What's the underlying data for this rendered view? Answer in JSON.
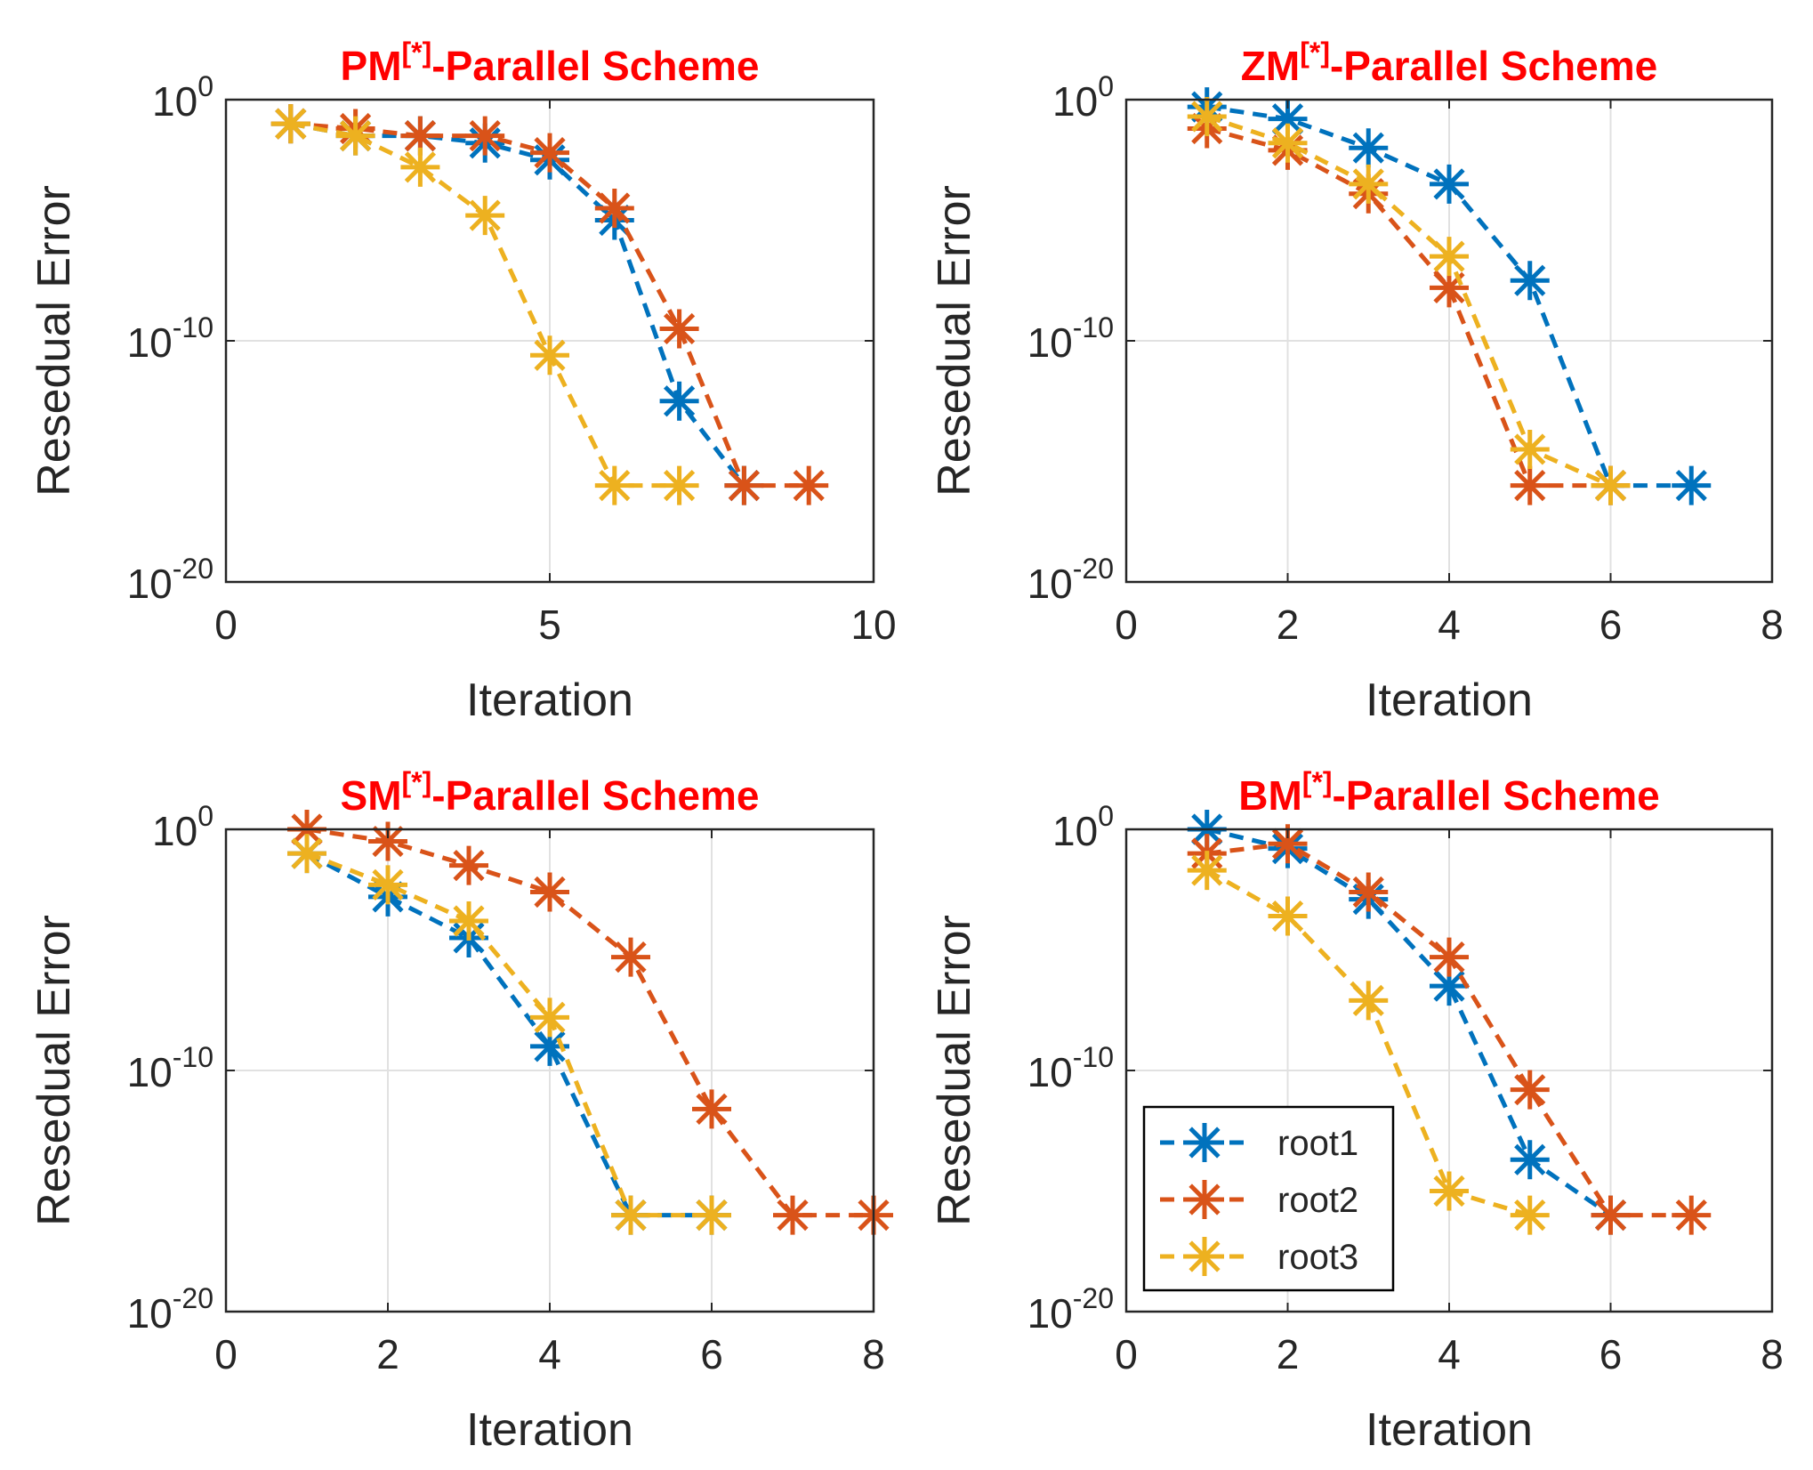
{
  "colors": {
    "root1": "#0072BD",
    "root2": "#D95319",
    "root3": "#EDB120",
    "title": "#ff0000",
    "grid": "#e1e1e1",
    "axis": "#262626"
  },
  "legend": {
    "placement": "bottom-left",
    "entries": [
      "root1",
      "root2",
      "root3"
    ]
  },
  "chart_data": [
    {
      "type": "line",
      "title": {
        "prefix": "PM",
        "sup": "[*]",
        "suffix": "-Parallel Scheme"
      },
      "xlabel": "Iteration",
      "ylabel": "Resedual Error",
      "xlim": [
        0,
        10
      ],
      "xticks": [
        0,
        5,
        10
      ],
      "ylim": [
        -20,
        0
      ],
      "yscale": "log",
      "yticks": [
        {
          "base": "10",
          "exp": "0",
          "value": 0
        },
        {
          "base": "10",
          "exp": "-10",
          "value": -10
        },
        {
          "base": "10",
          "exp": "-20",
          "value": -20
        }
      ],
      "grid": true,
      "series": [
        {
          "name": "root1",
          "x": [
            1,
            2,
            3,
            4,
            5,
            6,
            7,
            8
          ],
          "log10_y": [
            -1,
            -1.5,
            -1.5,
            -1.8,
            -2.5,
            -5.0,
            -12.5,
            -16
          ]
        },
        {
          "name": "root2",
          "x": [
            1,
            2,
            3,
            4,
            5,
            6,
            7,
            8,
            9
          ],
          "log10_y": [
            -1,
            -1.2,
            -1.5,
            -1.5,
            -2.2,
            -4.5,
            -9.5,
            -16,
            -16
          ]
        },
        {
          "name": "root3",
          "x": [
            1,
            2,
            3,
            4,
            5,
            6,
            7
          ],
          "log10_y": [
            -1,
            -1.5,
            -2.8,
            -4.8,
            -10.6,
            -16,
            -16
          ]
        }
      ]
    },
    {
      "type": "line",
      "title": {
        "prefix": "ZM",
        "sup": "[*]",
        "suffix": "-Parallel Scheme"
      },
      "xlabel": "Iteration",
      "ylabel": "Resedual Error",
      "xlim": [
        0,
        8
      ],
      "xticks": [
        0,
        2,
        4,
        6,
        8
      ],
      "ylim": [
        -20,
        0
      ],
      "yscale": "log",
      "yticks": [
        {
          "base": "10",
          "exp": "0",
          "value": 0
        },
        {
          "base": "10",
          "exp": "-10",
          "value": -10
        },
        {
          "base": "10",
          "exp": "-20",
          "value": -20
        }
      ],
      "grid": true,
      "series": [
        {
          "name": "root1",
          "x": [
            1,
            2,
            3,
            4,
            5,
            6,
            7
          ],
          "log10_y": [
            -0.3,
            -0.8,
            -2.0,
            -3.5,
            -7.5,
            -16,
            -16
          ]
        },
        {
          "name": "root2",
          "x": [
            1,
            2,
            3,
            4,
            5,
            6
          ],
          "log10_y": [
            -1.2,
            -2.1,
            -3.9,
            -7.8,
            -16,
            -16
          ]
        },
        {
          "name": "root3",
          "x": [
            1,
            2,
            3,
            4,
            5,
            6
          ],
          "log10_y": [
            -0.7,
            -1.8,
            -3.5,
            -6.5,
            -14.5,
            -16
          ]
        }
      ]
    },
    {
      "type": "line",
      "title": {
        "prefix": "SM",
        "sup": "[*]",
        "suffix": "-Parallel Scheme"
      },
      "xlabel": "Iteration",
      "ylabel": "Resedual Error",
      "xlim": [
        0,
        8
      ],
      "xticks": [
        0,
        2,
        4,
        6,
        8
      ],
      "ylim": [
        -20,
        0
      ],
      "yscale": "log",
      "yticks": [
        {
          "base": "10",
          "exp": "0",
          "value": 0
        },
        {
          "base": "10",
          "exp": "-10",
          "value": -10
        },
        {
          "base": "10",
          "exp": "-20",
          "value": -20
        }
      ],
      "grid": true,
      "series": [
        {
          "name": "root1",
          "x": [
            1,
            2,
            3,
            4,
            5,
            6
          ],
          "log10_y": [
            -1,
            -2.8,
            -4.5,
            -9.0,
            -16,
            -16
          ]
        },
        {
          "name": "root2",
          "x": [
            1,
            2,
            3,
            4,
            5,
            6,
            7,
            8
          ],
          "log10_y": [
            0,
            -0.5,
            -1.5,
            -2.6,
            -5.3,
            -11.6,
            -16,
            -16
          ]
        },
        {
          "name": "root3",
          "x": [
            1,
            2,
            3,
            4,
            5,
            6
          ],
          "log10_y": [
            -1,
            -2.3,
            -3.8,
            -7.8,
            -16,
            -16
          ]
        }
      ]
    },
    {
      "type": "line",
      "title": {
        "prefix": "BM",
        "sup": "[*]",
        "suffix": "-Parallel Scheme"
      },
      "xlabel": "Iteration",
      "ylabel": "Resedual Error",
      "xlim": [
        0,
        8
      ],
      "xticks": [
        0,
        2,
        4,
        6,
        8
      ],
      "ylim": [
        -20,
        0
      ],
      "yscale": "log",
      "yticks": [
        {
          "base": "10",
          "exp": "0",
          "value": 0
        },
        {
          "base": "10",
          "exp": "-10",
          "value": -10
        },
        {
          "base": "10",
          "exp": "-20",
          "value": -20
        }
      ],
      "grid": true,
      "series": [
        {
          "name": "root1",
          "x": [
            1,
            2,
            3,
            4,
            5,
            6
          ],
          "log10_y": [
            0,
            -0.8,
            -2.9,
            -6.5,
            -13.7,
            -16
          ]
        },
        {
          "name": "root2",
          "x": [
            1,
            2,
            3,
            4,
            5,
            6,
            7
          ],
          "log10_y": [
            -1,
            -0.6,
            -2.6,
            -5.3,
            -10.8,
            -16,
            -16
          ]
        },
        {
          "name": "root3",
          "x": [
            1,
            2,
            3,
            4,
            5
          ],
          "log10_y": [
            -1.7,
            -3.6,
            -7.1,
            -15.0,
            -16
          ]
        }
      ]
    }
  ]
}
